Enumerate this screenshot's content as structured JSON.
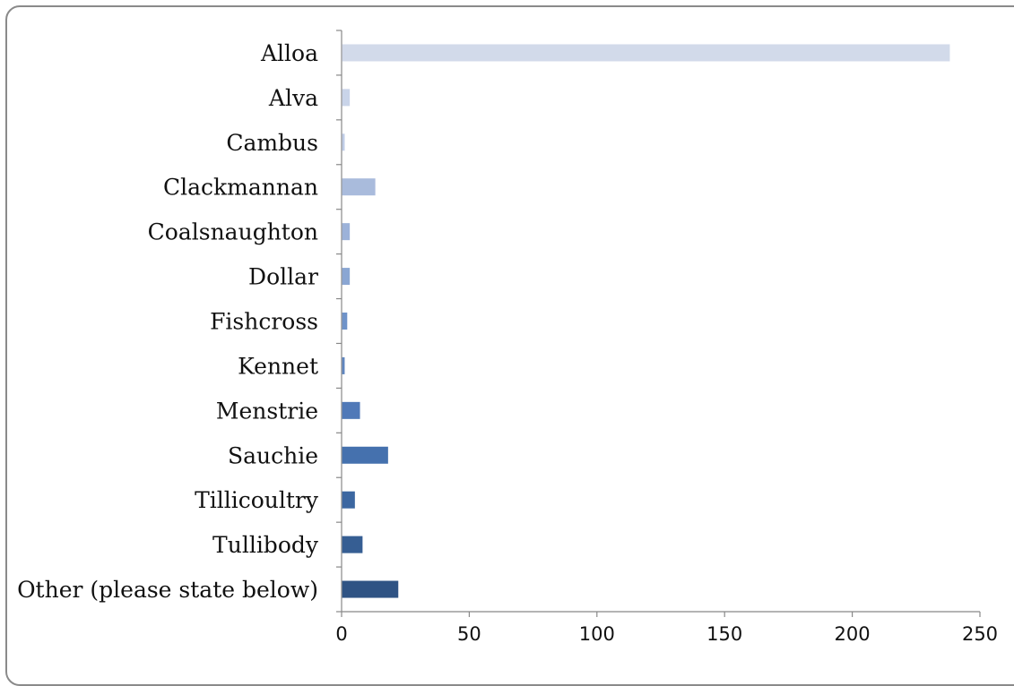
{
  "chart_data": {
    "type": "bar",
    "orientation": "horizontal",
    "categories": [
      "Alloa",
      "Alva",
      "Cambus",
      "Clackmannan",
      "Coalsnaughton",
      "Dollar",
      "Fishcross",
      "Kennet",
      "Menstrie",
      "Sauchie",
      "Tillicoultry",
      "Tullibody",
      "Other (please state below)"
    ],
    "values": [
      238,
      3,
      1,
      13,
      3,
      3,
      2,
      1,
      7,
      18,
      5,
      8,
      22
    ],
    "bar_colors": [
      "#d2daea",
      "#c9d4e9",
      "#c0cde7",
      "#a9bbdc",
      "#9cb2d9",
      "#8aa6d3",
      "#6f93c9",
      "#5f86c0",
      "#5079b8",
      "#4571ae",
      "#3c67a1",
      "#365e93",
      "#2f5384"
    ],
    "xlim": [
      0,
      250
    ],
    "xticks": [
      "0",
      "50",
      "100",
      "150",
      "200",
      "250"
    ],
    "xlabel": "",
    "ylabel": "",
    "title": "",
    "grid": false,
    "legend": false
  }
}
